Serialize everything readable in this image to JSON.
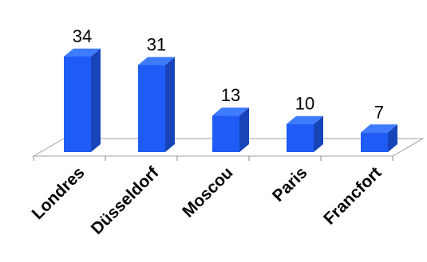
{
  "chart_data": {
    "type": "bar",
    "categories": [
      "Londres",
      "Düsseldorf",
      "Moscou",
      "Paris",
      "Francfort"
    ],
    "values": [
      34,
      31,
      13,
      10,
      7
    ],
    "title": "",
    "xlabel": "",
    "ylabel": "",
    "ylim": [
      0,
      34
    ],
    "grid": false,
    "legend": "none",
    "bar_color": "#1f5cf5",
    "bar_side_color": "#1744b8",
    "bar_top_color": "#3f7bff",
    "floor_color": "#ffffff",
    "axis_color": "#888888"
  }
}
